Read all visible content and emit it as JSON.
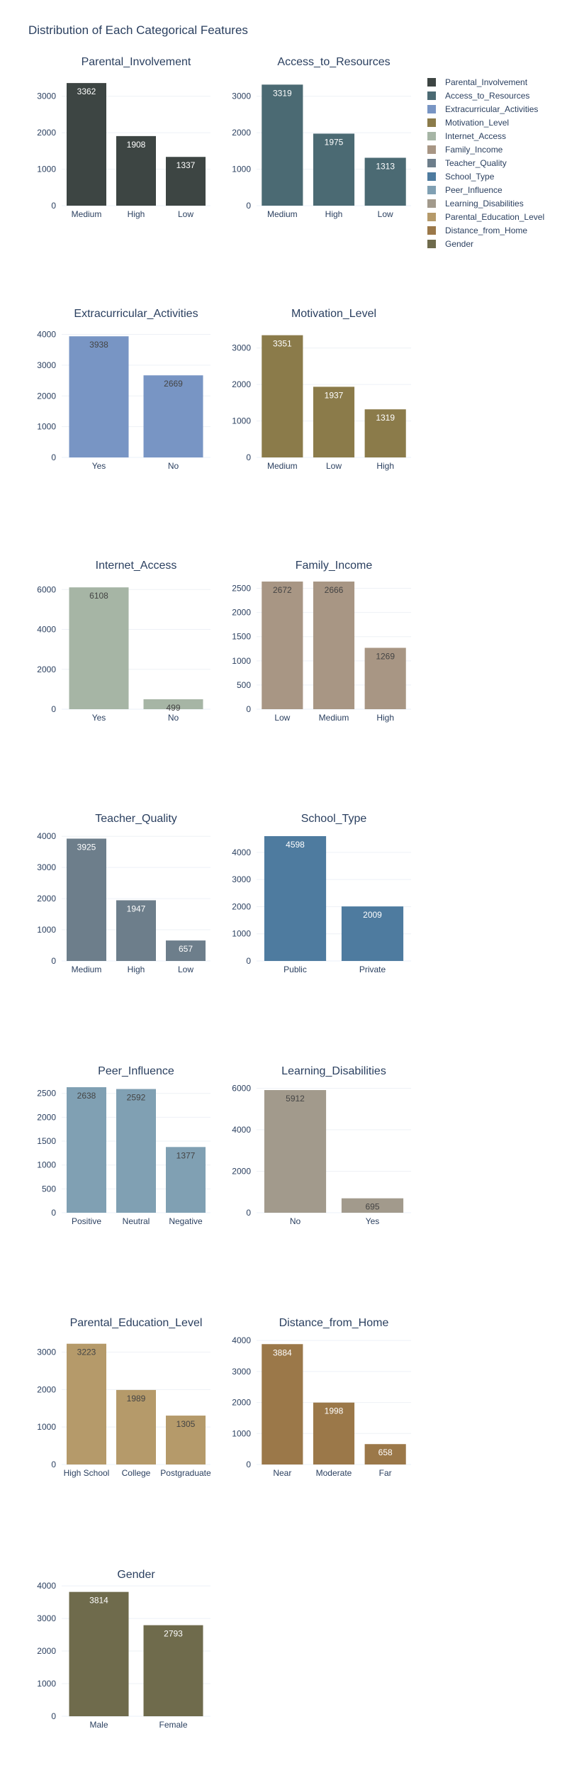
{
  "title": "Distribution of Each Categorical Features",
  "chart_data": [
    {
      "type": "bar",
      "title": "Parental_Involvement",
      "categories": [
        "Medium",
        "High",
        "Low"
      ],
      "values": [
        3362,
        1908,
        1337
      ],
      "ylim": [
        0,
        3500
      ],
      "yticks": [
        0,
        1000,
        2000,
        3000
      ],
      "color": "#3d4543",
      "label_color": "#ffffff"
    },
    {
      "type": "bar",
      "title": "Access_to_Resources",
      "categories": [
        "Medium",
        "High",
        "Low"
      ],
      "values": [
        3319,
        1975,
        1313
      ],
      "ylim": [
        0,
        3500
      ],
      "yticks": [
        0,
        1000,
        2000,
        3000
      ],
      "color": "#4b6a73",
      "label_color": "#ffffff"
    },
    {
      "type": "bar",
      "title": "Extracurricular_Activities",
      "categories": [
        "Yes",
        "No"
      ],
      "values": [
        3938,
        2669
      ],
      "ylim": [
        0,
        4150
      ],
      "yticks": [
        0,
        1000,
        2000,
        3000,
        4000
      ],
      "color": "#7895c4",
      "label_color": "#444444"
    },
    {
      "type": "bar",
      "title": "Motivation_Level",
      "categories": [
        "Medium",
        "Low",
        "High"
      ],
      "values": [
        3351,
        1937,
        1319
      ],
      "ylim": [
        0,
        3500
      ],
      "yticks": [
        0,
        1000,
        2000,
        3000
      ],
      "color": "#8b7b4a",
      "label_color": "#ffffff"
    },
    {
      "type": "bar",
      "title": "Internet_Access",
      "categories": [
        "Yes",
        "No"
      ],
      "values": [
        6108,
        499
      ],
      "ylim": [
        0,
        6400
      ],
      "yticks": [
        0,
        2000,
        4000,
        6000
      ],
      "color": "#a6b5a5",
      "label_color": "#444444"
    },
    {
      "type": "bar",
      "title": "Family_Income",
      "categories": [
        "Low",
        "Medium",
        "High"
      ],
      "values": [
        2672,
        2666,
        1269
      ],
      "ylim": [
        0,
        2640
      ],
      "yticks": [
        0,
        500,
        1000,
        1500,
        2000,
        2500
      ],
      "color": "#a89684",
      "label_color": "#444444"
    },
    {
      "type": "bar",
      "title": "Teacher_Quality",
      "categories": [
        "Medium",
        "High",
        "Low"
      ],
      "values": [
        3925,
        1947,
        657
      ],
      "ylim": [
        0,
        4050
      ],
      "yticks": [
        0,
        1000,
        2000,
        3000,
        4000
      ],
      "color": "#6d7e8b",
      "label_color": "#ffffff"
    },
    {
      "type": "bar",
      "title": "School_Type",
      "categories": [
        "Public",
        "Private"
      ],
      "values": [
        4598,
        2009
      ],
      "ylim": [
        0,
        4650
      ],
      "yticks": [
        0,
        1000,
        2000,
        3000,
        4000
      ],
      "color": "#4e7b9f",
      "label_color": "#ffffff"
    },
    {
      "type": "bar",
      "title": "Peer_Influence",
      "categories": [
        "Positive",
        "Neutral",
        "Negative"
      ],
      "values": [
        2638,
        2592,
        1377
      ],
      "ylim": [
        0,
        2630
      ],
      "yticks": [
        0,
        500,
        1000,
        1500,
        2000,
        2500
      ],
      "color": "#80a0b3",
      "label_color": "#444444"
    },
    {
      "type": "bar",
      "title": "Learning_Disabilities",
      "categories": [
        "No",
        "Yes"
      ],
      "values": [
        5912,
        695
      ],
      "ylim": [
        0,
        6050
      ],
      "yticks": [
        0,
        2000,
        4000,
        6000
      ],
      "color": "#a29a8c",
      "label_color": "#444444"
    },
    {
      "type": "bar",
      "title": "Parental_Education_Level",
      "categories": [
        "High School",
        "College",
        "Postgraduate"
      ],
      "values": [
        3223,
        1989,
        1305
      ],
      "ylim": [
        0,
        3350
      ],
      "yticks": [
        0,
        1000,
        2000,
        3000
      ],
      "color": "#b59a6a",
      "label_color": "#444444"
    },
    {
      "type": "bar",
      "title": "Distance_from_Home",
      "categories": [
        "Near",
        "Moderate",
        "Far"
      ],
      "values": [
        3884,
        1998,
        658
      ],
      "ylim": [
        0,
        4050
      ],
      "yticks": [
        0,
        1000,
        2000,
        3000,
        4000
      ],
      "color": "#9b7849",
      "label_color": "#ffffff"
    },
    {
      "type": "bar",
      "title": "Gender",
      "categories": [
        "Male",
        "Female"
      ],
      "values": [
        3814,
        2793
      ],
      "ylim": [
        0,
        3850
      ],
      "yticks": [
        0,
        1000,
        2000,
        3000,
        4000
      ],
      "color": "#6f6b4c",
      "label_color": "#ffffff"
    }
  ],
  "legend": {
    "position": "top-right",
    "items": [
      {
        "name": "Parental_Involvement",
        "color": "#3d4543"
      },
      {
        "name": "Access_to_Resources",
        "color": "#4b6a73"
      },
      {
        "name": "Extracurricular_Activities",
        "color": "#7895c4"
      },
      {
        "name": "Motivation_Level",
        "color": "#8b7b4a"
      },
      {
        "name": "Internet_Access",
        "color": "#a6b5a5"
      },
      {
        "name": "Family_Income",
        "color": "#a89684"
      },
      {
        "name": "Teacher_Quality",
        "color": "#6d7e8b"
      },
      {
        "name": "School_Type",
        "color": "#4e7b9f"
      },
      {
        "name": "Peer_Influence",
        "color": "#80a0b3"
      },
      {
        "name": "Learning_Disabilities",
        "color": "#a29a8c"
      },
      {
        "name": "Parental_Education_Level",
        "color": "#b59a6a"
      },
      {
        "name": "Distance_from_Home",
        "color": "#9b7849"
      },
      {
        "name": "Gender",
        "color": "#6f6b4c"
      }
    ]
  }
}
